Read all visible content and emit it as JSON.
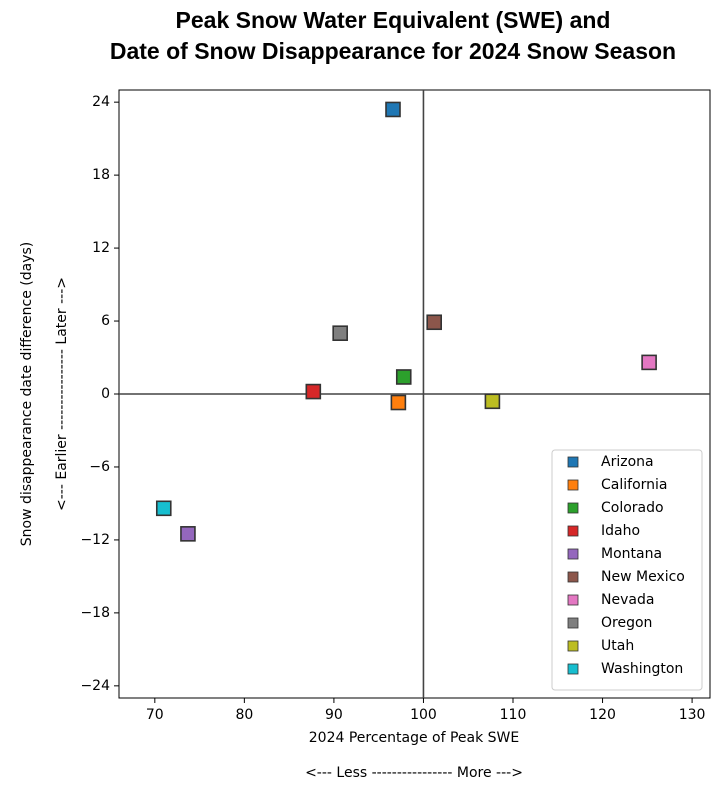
{
  "chart_data": {
    "type": "scatter",
    "title": [
      "Peak Snow Water Equivalent (SWE) and",
      "Date of Snow Disappearance for 2024 Snow Season"
    ],
    "x_label": [
      "2024 Percentage of Peak SWE",
      "<--- Less  ----------------  More --->"
    ],
    "y_label": [
      "Snow disappearance date difference (days)",
      "<--- Earlier  ----------------  Later --->"
    ],
    "xlim": [
      66,
      132
    ],
    "ylim": [
      -25,
      25
    ],
    "xticks": [
      70,
      80,
      90,
      100,
      110,
      120,
      130
    ],
    "yticks": [
      {
        "value": -24,
        "label": "−24"
      },
      {
        "value": -18,
        "label": "−18"
      },
      {
        "value": -12,
        "label": "−12"
      },
      {
        "value": -6,
        "label": "−6"
      },
      0,
      6,
      12,
      18,
      24
    ],
    "hlines": [
      0
    ],
    "vlines": [
      100
    ],
    "legend": "lower right",
    "series": [
      {
        "name": "Arizona",
        "color": "#1f77b4",
        "x": [
          96.6
        ],
        "values": [
          23.4
        ]
      },
      {
        "name": "California",
        "color": "#ff7f0e",
        "x": [
          97.2
        ],
        "values": [
          -0.7
        ]
      },
      {
        "name": "Colorado",
        "color": "#2ca02c",
        "x": [
          97.8
        ],
        "values": [
          1.4
        ]
      },
      {
        "name": "Idaho",
        "color": "#d62728",
        "x": [
          87.7
        ],
        "values": [
          0.2
        ]
      },
      {
        "name": "Montana",
        "color": "#9467bd",
        "x": [
          73.7
        ],
        "values": [
          -11.5
        ]
      },
      {
        "name": "New Mexico",
        "color": "#8c564b",
        "x": [
          101.2
        ],
        "values": [
          5.9
        ]
      },
      {
        "name": "Nevada",
        "color": "#e377c2",
        "x": [
          125.2
        ],
        "values": [
          2.6
        ]
      },
      {
        "name": "Oregon",
        "color": "#7f7f7f",
        "x": [
          90.7
        ],
        "values": [
          5.0
        ]
      },
      {
        "name": "Utah",
        "color": "#bcbd22",
        "x": [
          107.7
        ],
        "values": [
          -0.6
        ]
      },
      {
        "name": "Washington",
        "color": "#17becf",
        "x": [
          71.0
        ],
        "values": [
          -9.4
        ]
      }
    ]
  }
}
